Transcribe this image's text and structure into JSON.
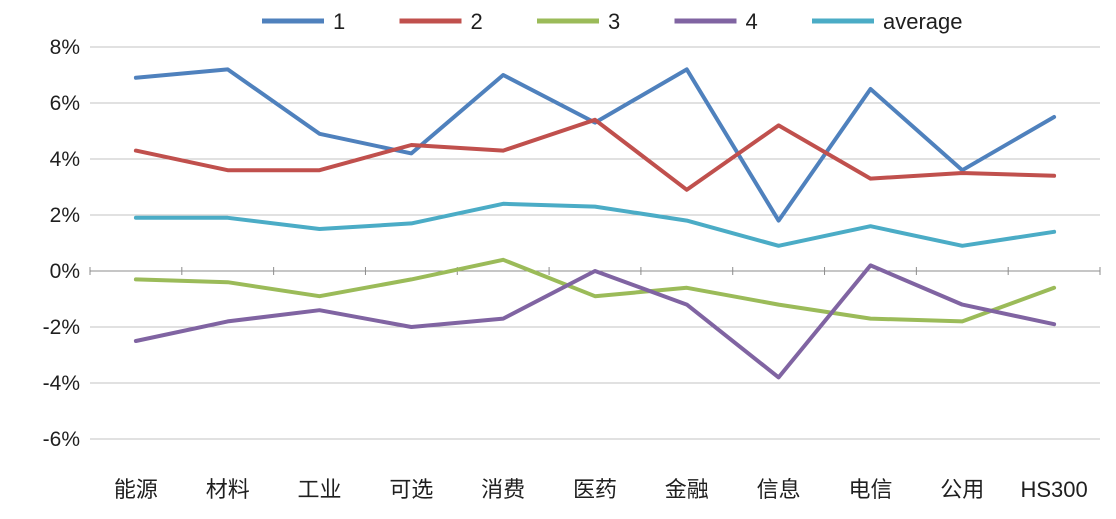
{
  "chart_data": {
    "type": "line",
    "title": "",
    "xlabel": "",
    "ylabel": "",
    "grid": true,
    "legend_position": "top",
    "categories": [
      "能源",
      "材料",
      "工业",
      "可选",
      "消费",
      "医药",
      "金融",
      "信息",
      "电信",
      "公用",
      "HS300"
    ],
    "series": [
      {
        "name": "1",
        "color": "#4F81BD",
        "values": [
          6.9,
          7.2,
          4.9,
          4.2,
          7.0,
          5.3,
          7.2,
          1.8,
          6.5,
          3.6,
          5.5
        ]
      },
      {
        "name": "2",
        "color": "#C0504D",
        "values": [
          4.3,
          3.6,
          3.6,
          4.5,
          4.3,
          5.4,
          2.9,
          5.2,
          3.3,
          3.5,
          3.4
        ]
      },
      {
        "name": "3",
        "color": "#9BBB59",
        "values": [
          -0.3,
          -0.4,
          -0.9,
          -0.3,
          0.4,
          -0.9,
          -0.6,
          -1.2,
          -1.7,
          -1.8,
          -0.6
        ]
      },
      {
        "name": "4",
        "color": "#8064A2",
        "values": [
          -2.5,
          -1.8,
          -1.4,
          -2.0,
          -1.7,
          0.0,
          -1.2,
          -3.8,
          0.2,
          -1.2,
          -1.9
        ]
      },
      {
        "name": "average",
        "color": "#4BACC6",
        "values": [
          1.9,
          1.9,
          1.5,
          1.7,
          2.4,
          2.3,
          1.8,
          0.9,
          1.6,
          0.9,
          1.4
        ]
      }
    ],
    "y_axis": {
      "min": -6,
      "max": 8,
      "step": 2,
      "tick_suffix": "%",
      "labels": [
        "8%",
        "6%",
        "4%",
        "2%",
        "0%",
        "-2%",
        "-4%",
        "-6%"
      ]
    },
    "colors": {
      "grid": "#C3C3C3",
      "axis": "#8C8C8C",
      "text": "#1F1F1F",
      "background": "#FFFFFF"
    }
  }
}
